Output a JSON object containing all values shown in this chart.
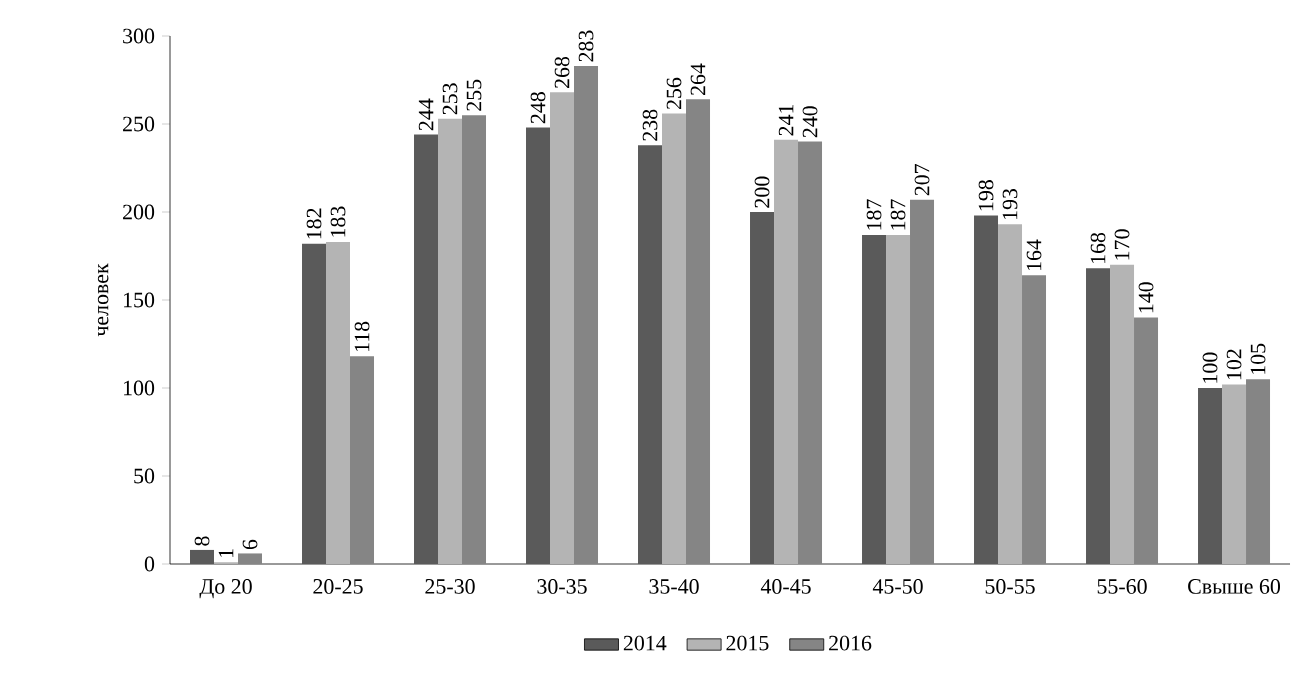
{
  "chart_data": {
    "type": "bar",
    "ylabel": "человек",
    "categories": [
      "До 20",
      "20-25",
      "25-30",
      "30-35",
      "35-40",
      "40-45",
      "45-50",
      "50-55",
      "55-60",
      "Свыше 60"
    ],
    "series": [
      {
        "name": "2014",
        "color": "#5a5a5a",
        "values": [
          8,
          182,
          244,
          248,
          238,
          200,
          187,
          198,
          168,
          100
        ]
      },
      {
        "name": "2015",
        "color": "#b4b4b4",
        "values": [
          1,
          183,
          253,
          268,
          256,
          241,
          187,
          193,
          170,
          102
        ]
      },
      {
        "name": "2016",
        "color": "#858585",
        "values": [
          6,
          118,
          255,
          283,
          264,
          240,
          207,
          164,
          140,
          105
        ]
      }
    ],
    "ylim": [
      0,
      300
    ],
    "yticks": [
      0,
      50,
      100,
      150,
      200,
      250,
      300
    ],
    "data_labels": true,
    "legend": "bottom",
    "grid": false
  }
}
